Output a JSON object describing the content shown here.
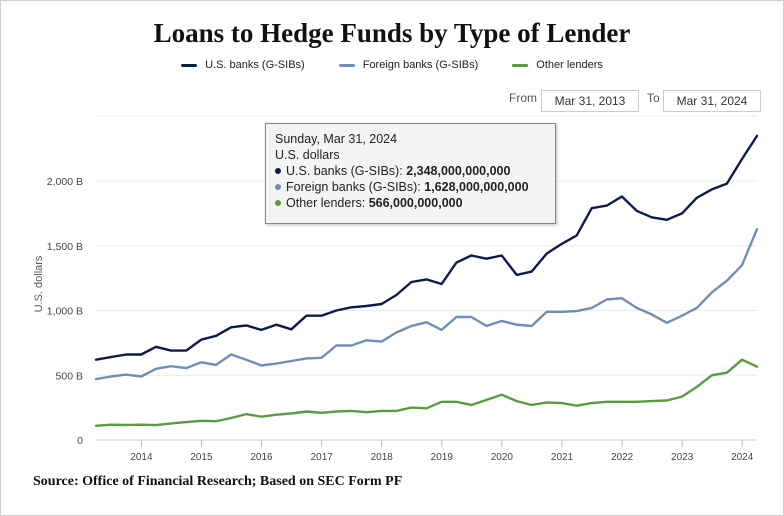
{
  "title": "Loans to Hedge Funds by Type of Lender",
  "legend": [
    {
      "label": "U.S. banks (G-SIBs)",
      "color": "#0d1b4c"
    },
    {
      "label": "Foreign banks (G-SIBs)",
      "color": "#6f8fb8"
    },
    {
      "label": "Other lenders",
      "color": "#5a9b43"
    }
  ],
  "range": {
    "from_label": "From",
    "from_value": "Mar 31, 2013",
    "to_label": "To",
    "to_value": "Mar 31, 2024"
  },
  "tooltip": {
    "date": "Sunday, Mar 31, 2024",
    "unit": "U.S. dollars",
    "rows": [
      {
        "label": "U.S. banks (G-SIBs):",
        "value": "2,348,000,000,000",
        "color": "#0d1b4c"
      },
      {
        "label": "Foreign banks (G-SIBs):",
        "value": "1,628,000,000,000",
        "color": "#6f8fb8"
      },
      {
        "label": "Other lenders:",
        "value": "566,000,000,000",
        "color": "#5a9b43"
      }
    ]
  },
  "source": "Source: Office of Financial Research; Based on SEC Form PF",
  "chart_data": {
    "type": "line",
    "ylabel": "U.S. dollars",
    "ylim": [
      0,
      2500
    ],
    "y_ticks": [
      {
        "value": 0,
        "label": "0"
      },
      {
        "value": 500,
        "label": "500 B"
      },
      {
        "value": 1000,
        "label": "1,000 B"
      },
      {
        "value": 1500,
        "label": "1,500 B"
      },
      {
        "value": 2000,
        "label": "2,000 B"
      }
    ],
    "x_ticks": [
      "2014",
      "2015",
      "2016",
      "2017",
      "2018",
      "2019",
      "2020",
      "2021",
      "2022",
      "2023",
      "2024"
    ],
    "x": [
      "2013-03-31",
      "2013-06-30",
      "2013-09-30",
      "2013-12-31",
      "2014-03-31",
      "2014-06-30",
      "2014-09-30",
      "2014-12-31",
      "2015-03-31",
      "2015-06-30",
      "2015-09-30",
      "2015-12-31",
      "2016-03-31",
      "2016-06-30",
      "2016-09-30",
      "2016-12-31",
      "2017-03-31",
      "2017-06-30",
      "2017-09-30",
      "2017-12-31",
      "2018-03-31",
      "2018-06-30",
      "2018-09-30",
      "2018-12-31",
      "2019-03-31",
      "2019-06-30",
      "2019-09-30",
      "2019-12-31",
      "2020-03-31",
      "2020-06-30",
      "2020-09-30",
      "2020-12-31",
      "2021-03-31",
      "2021-06-30",
      "2021-09-30",
      "2021-12-31",
      "2022-03-31",
      "2022-06-30",
      "2022-09-30",
      "2022-12-31",
      "2023-03-31",
      "2023-06-30",
      "2023-09-30",
      "2023-12-31",
      "2024-03-31"
    ],
    "series": [
      {
        "name": "U.S. banks (G-SIBs)",
        "color": "#0d1b4c",
        "values": [
          620,
          640,
          660,
          660,
          720,
          690,
          690,
          775,
          805,
          870,
          885,
          850,
          890,
          855,
          960,
          960,
          1000,
          1025,
          1035,
          1050,
          1120,
          1220,
          1240,
          1205,
          1370,
          1425,
          1400,
          1425,
          1275,
          1300,
          1440,
          1515,
          1580,
          1790,
          1810,
          1880,
          1770,
          1720,
          1700,
          1750,
          1870,
          1935,
          1980,
          2170,
          2348
        ]
      },
      {
        "name": "Foreign banks (G-SIBs)",
        "color": "#6f8fb8",
        "values": [
          470,
          490,
          505,
          490,
          550,
          570,
          555,
          600,
          580,
          660,
          620,
          575,
          590,
          610,
          630,
          635,
          730,
          730,
          770,
          760,
          830,
          880,
          910,
          850,
          950,
          950,
          880,
          920,
          890,
          880,
          990,
          990,
          995,
          1020,
          1085,
          1095,
          1020,
          970,
          905,
          960,
          1020,
          1140,
          1230,
          1350,
          1628
        ]
      },
      {
        "name": "Other lenders",
        "color": "#5a9b43",
        "values": [
          110,
          118,
          116,
          118,
          115,
          128,
          138,
          148,
          145,
          170,
          200,
          180,
          195,
          205,
          220,
          210,
          220,
          225,
          215,
          225,
          225,
          250,
          245,
          295,
          295,
          270,
          310,
          350,
          300,
          270,
          290,
          285,
          265,
          285,
          295,
          295,
          295,
          300,
          305,
          335,
          410,
          500,
          520,
          620,
          566
        ]
      }
    ]
  }
}
